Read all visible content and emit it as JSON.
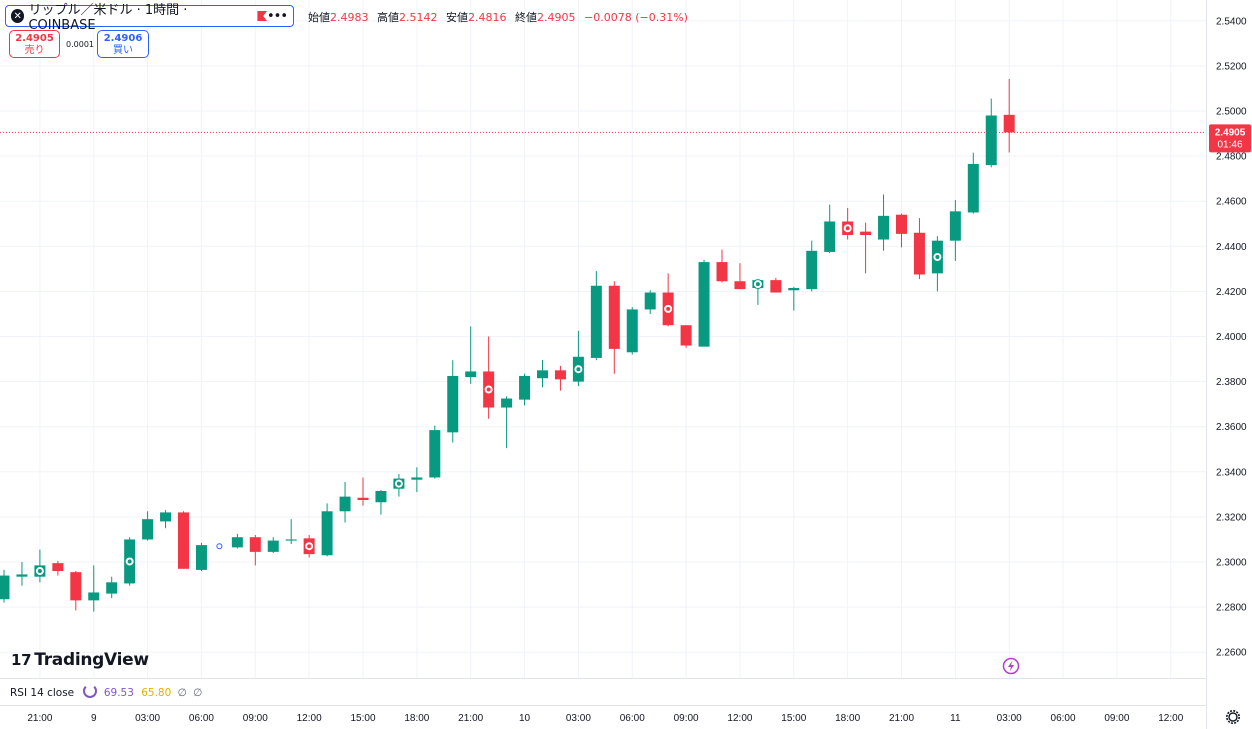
{
  "header": {
    "symbol_title": "リップル／米ドル · 1時間 · COINBASE",
    "logo_glyph": "✕",
    "more_glyph": "•••",
    "ohlc": {
      "open_label": "始値",
      "open": "2.4983",
      "high_label": "高値",
      "high": "2.5142",
      "low_label": "安値",
      "low": "2.4816",
      "close_label": "終値",
      "close": "2.4905",
      "change": "−0.0078 (−0.31%)"
    }
  },
  "trade": {
    "sell_price": "2.4905",
    "sell_label": "売り",
    "spread": "0.0001",
    "buy_price": "2.4906",
    "buy_label": "買い"
  },
  "price_tag": {
    "price": "2.4905",
    "countdown": "01:46"
  },
  "branding": {
    "name": "TradingView",
    "mark": "17"
  },
  "indicator": {
    "name": "RSI 14 close",
    "value1": "69.53",
    "value2": "65.80",
    "hidden1": "∅",
    "hidden2": "∅"
  },
  "colors": {
    "up": "#089981",
    "down": "#f23645",
    "grid": "#f0f3fa",
    "text": "#131722",
    "accent": "#2962ff",
    "rsi": "#7e57c2",
    "rsi_ma": "#e0b100"
  },
  "chart_data": {
    "type": "candlestick",
    "ylim": [
      2.255,
      2.545
    ],
    "ytick_labels": [
      "2.2600",
      "2.2800",
      "2.3000",
      "2.3200",
      "2.3400",
      "2.3600",
      "2.3800",
      "2.4000",
      "2.4200",
      "2.4400",
      "2.4600",
      "2.4800",
      "2.5000",
      "2.5200",
      "2.5400"
    ],
    "ytick_values": [
      2.26,
      2.28,
      2.3,
      2.32,
      2.34,
      2.36,
      2.38,
      2.4,
      2.42,
      2.44,
      2.46,
      2.48,
      2.5,
      2.52,
      2.54
    ],
    "xtick_labels": [
      "21:00",
      "9",
      "03:00",
      "06:00",
      "09:00",
      "12:00",
      "15:00",
      "18:00",
      "21:00",
      "10",
      "03:00",
      "06:00",
      "09:00",
      "12:00",
      "15:00",
      "18:00",
      "21:00",
      "11",
      "03:00",
      "06:00",
      "09:00",
      "12:00"
    ],
    "xtick_bar_index": [
      2,
      5,
      8,
      11,
      14,
      17,
      20,
      23,
      26,
      29,
      32,
      35,
      38,
      41,
      44,
      47,
      50,
      53,
      56,
      59,
      62,
      65
    ],
    "last_price": 2.4905,
    "candles": [
      {
        "o": 2.2835,
        "h": 2.2965,
        "l": 2.282,
        "c": 2.294
      },
      {
        "o": 2.2935,
        "h": 2.3,
        "l": 2.2895,
        "c": 2.2945
      },
      {
        "o": 2.2935,
        "h": 2.3055,
        "l": 2.291,
        "c": 2.2985,
        "marker": true
      },
      {
        "o": 2.2995,
        "h": 2.3005,
        "l": 2.294,
        "c": 2.296
      },
      {
        "o": 2.2955,
        "h": 2.296,
        "l": 2.2785,
        "c": 2.283
      },
      {
        "o": 2.283,
        "h": 2.2985,
        "l": 2.278,
        "c": 2.2865
      },
      {
        "o": 2.286,
        "h": 2.2935,
        "l": 2.284,
        "c": 2.291
      },
      {
        "o": 2.2905,
        "h": 2.311,
        "l": 2.2895,
        "c": 2.31,
        "marker": true
      },
      {
        "o": 2.31,
        "h": 2.3225,
        "l": 2.3095,
        "c": 2.319
      },
      {
        "o": 2.318,
        "h": 2.323,
        "l": 2.315,
        "c": 2.322
      },
      {
        "o": 2.322,
        "h": 2.3225,
        "l": 2.297,
        "c": 2.297
      },
      {
        "o": 2.2965,
        "h": 2.3085,
        "l": 2.296,
        "c": 2.3075
      },
      {
        "o": 2.307,
        "h": 2.308,
        "l": 2.306,
        "c": 2.307,
        "hollow": true
      },
      {
        "o": 2.3065,
        "h": 2.3125,
        "l": 2.306,
        "c": 2.311
      },
      {
        "o": 2.311,
        "h": 2.312,
        "l": 2.2985,
        "c": 2.3045
      },
      {
        "o": 2.3045,
        "h": 2.311,
        "l": 2.304,
        "c": 2.3095
      },
      {
        "o": 2.3095,
        "h": 2.319,
        "l": 2.308,
        "c": 2.31
      },
      {
        "o": 2.3105,
        "h": 2.312,
        "l": 2.302,
        "c": 2.3035,
        "marker": true
      },
      {
        "o": 2.303,
        "h": 2.326,
        "l": 2.3025,
        "c": 2.3225
      },
      {
        "o": 2.3225,
        "h": 2.3355,
        "l": 2.3175,
        "c": 2.329
      },
      {
        "o": 2.3285,
        "h": 2.3375,
        "l": 2.325,
        "c": 2.3275
      },
      {
        "o": 2.3265,
        "h": 2.332,
        "l": 2.321,
        "c": 2.3315
      },
      {
        "o": 2.3325,
        "h": 2.339,
        "l": 2.329,
        "c": 2.337,
        "marker": true
      },
      {
        "o": 2.3365,
        "h": 2.342,
        "l": 2.331,
        "c": 2.3375
      },
      {
        "o": 2.3375,
        "h": 2.3605,
        "l": 2.337,
        "c": 2.3585
      },
      {
        "o": 2.3575,
        "h": 2.3895,
        "l": 2.353,
        "c": 2.3825
      },
      {
        "o": 2.382,
        "h": 2.4045,
        "l": 2.379,
        "c": 2.3845
      },
      {
        "o": 2.3845,
        "h": 2.4,
        "l": 2.3635,
        "c": 2.3685,
        "marker": true
      },
      {
        "o": 2.3685,
        "h": 2.3735,
        "l": 2.3505,
        "c": 2.3725
      },
      {
        "o": 2.372,
        "h": 2.3835,
        "l": 2.3695,
        "c": 2.3825
      },
      {
        "o": 2.3815,
        "h": 2.3895,
        "l": 2.3775,
        "c": 2.385
      },
      {
        "o": 2.385,
        "h": 2.387,
        "l": 2.376,
        "c": 2.381
      },
      {
        "o": 2.38,
        "h": 2.4025,
        "l": 2.378,
        "c": 2.391,
        "marker": true
      },
      {
        "o": 2.3905,
        "h": 2.429,
        "l": 2.3895,
        "c": 2.4225
      },
      {
        "o": 2.4225,
        "h": 2.4245,
        "l": 2.3835,
        "c": 2.3945
      },
      {
        "o": 2.393,
        "h": 2.413,
        "l": 2.392,
        "c": 2.412
      },
      {
        "o": 2.412,
        "h": 2.4205,
        "l": 2.41,
        "c": 2.4195
      },
      {
        "o": 2.4195,
        "h": 2.428,
        "l": 2.4045,
        "c": 2.405,
        "marker": true
      },
      {
        "o": 2.405,
        "h": 2.405,
        "l": 2.395,
        "c": 2.396
      },
      {
        "o": 2.3955,
        "h": 2.434,
        "l": 2.3955,
        "c": 2.433
      },
      {
        "o": 2.433,
        "h": 2.4385,
        "l": 2.424,
        "c": 2.4245
      },
      {
        "o": 2.4245,
        "h": 2.4325,
        "l": 2.421,
        "c": 2.421
      },
      {
        "o": 2.4215,
        "h": 2.425,
        "l": 2.414,
        "c": 2.425,
        "marker": true
      },
      {
        "o": 2.425,
        "h": 2.426,
        "l": 2.4195,
        "c": 2.4195
      },
      {
        "o": 2.4205,
        "h": 2.422,
        "l": 2.4115,
        "c": 2.4215
      },
      {
        "o": 2.421,
        "h": 2.4425,
        "l": 2.42,
        "c": 2.438
      },
      {
        "o": 2.4375,
        "h": 2.4585,
        "l": 2.437,
        "c": 2.451
      },
      {
        "o": 2.451,
        "h": 2.457,
        "l": 2.443,
        "c": 2.445,
        "marker": true
      },
      {
        "o": 2.4465,
        "h": 2.4505,
        "l": 2.428,
        "c": 2.445
      },
      {
        "o": 2.443,
        "h": 2.463,
        "l": 2.438,
        "c": 2.4535
      },
      {
        "o": 2.454,
        "h": 2.4545,
        "l": 2.4395,
        "c": 2.4455
      },
      {
        "o": 2.446,
        "h": 2.4525,
        "l": 2.4255,
        "c": 2.4275
      },
      {
        "o": 2.428,
        "h": 2.4445,
        "l": 2.42,
        "c": 2.4425,
        "marker": true
      },
      {
        "o": 2.4425,
        "h": 2.4605,
        "l": 2.4335,
        "c": 2.4555
      },
      {
        "o": 2.455,
        "h": 2.4815,
        "l": 2.4545,
        "c": 2.4765
      },
      {
        "o": 2.476,
        "h": 2.5055,
        "l": 2.475,
        "c": 2.498
      },
      {
        "o": 2.4983,
        "h": 2.5142,
        "l": 2.4816,
        "c": 2.4905
      }
    ]
  }
}
